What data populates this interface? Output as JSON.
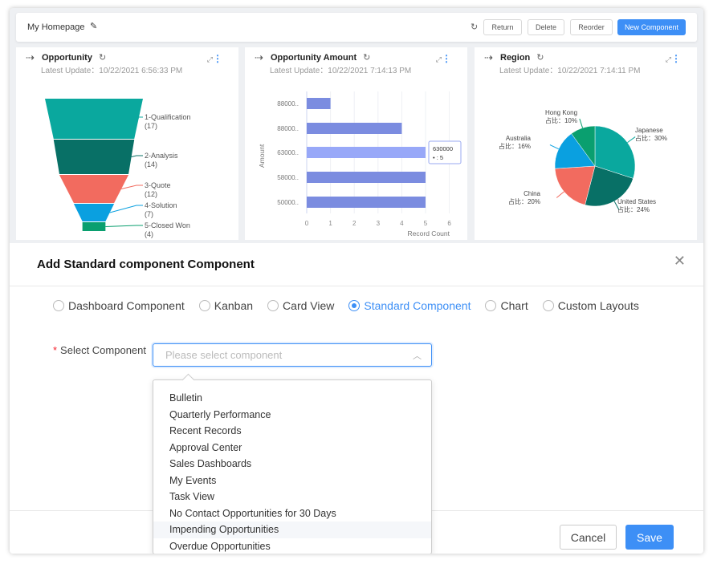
{
  "header": {
    "title": "My Homepage",
    "buttons": {
      "return": "Return",
      "delete": "Delete",
      "reorder": "Reorder",
      "new_component": "New Component"
    }
  },
  "cards": [
    {
      "title": "Opportunity",
      "update": "Latest Update：10/22/2021 6:56:33 PM"
    },
    {
      "title": "Opportunity Amount",
      "update": "Latest Update：10/22/2021 7:14:13 PM"
    },
    {
      "title": "Region",
      "update": "Latest Update：10/22/2021 7:14:11 PM"
    }
  ],
  "chart_data": [
    {
      "type": "funnel",
      "stages": [
        {
          "name": "1-Qualification",
          "value": 17,
          "color": "#0aa89e"
        },
        {
          "name": "2-Analysis",
          "value": 14,
          "color": "#087066"
        },
        {
          "name": "3-Quote",
          "value": 12,
          "color": "#f26b5f"
        },
        {
          "name": "4-Solution",
          "value": 7,
          "color": "#0aa0e0"
        },
        {
          "name": "5-Closed Won",
          "value": 4,
          "color": "#0a9f6f"
        }
      ]
    },
    {
      "type": "bar",
      "orientation": "horizontal",
      "categories": [
        "88000..",
        "88000..",
        "63000..",
        "58000..",
        "50000.."
      ],
      "values": [
        1,
        4,
        5,
        5,
        5
      ],
      "xlabel": "Record Count",
      "ylabel": "Amount",
      "xlim": [
        0,
        6
      ],
      "xticks": [
        "0",
        "1",
        "2",
        "3",
        "4",
        "5",
        "6"
      ],
      "color": "#7b8ce0",
      "highlight_color": "#98a8f8",
      "tooltip": {
        "title": "630000",
        "value": "• : 5"
      }
    },
    {
      "type": "pie",
      "slices": [
        {
          "name": "Japanese",
          "value": 30,
          "label": "占比：30%",
          "color": "#0aa89e"
        },
        {
          "name": "United States",
          "value": 24,
          "label": "占比：24%",
          "color": "#087066"
        },
        {
          "name": "China",
          "value": 20,
          "label": "占比：20%",
          "color": "#f26b5f"
        },
        {
          "name": "Australia",
          "value": 16,
          "label": "占比：16%",
          "color": "#0aa0e0"
        },
        {
          "name": "Hong Kong",
          "value": 10,
          "label": "占比：10%",
          "color": "#0a9f6f"
        }
      ]
    }
  ],
  "modal": {
    "title": "Add Standard component Component",
    "types": [
      "Dashboard Component",
      "Kanban",
      "Card View",
      "Standard Component",
      "Chart",
      "Custom Layouts"
    ],
    "selected_type": "Standard Component",
    "field_label": "Select Component",
    "placeholder": "Please select component",
    "options": [
      "Bulletin",
      "Quarterly Performance",
      "Recent Records",
      "Approval Center",
      "Sales Dashboards",
      "My Events",
      "Task View",
      "No Contact Opportunities for 30 Days",
      "Impending Opportunities",
      "Overdue Opportunities"
    ],
    "hovered_option": "Impending Opportunities",
    "cancel": "Cancel",
    "save": "Save"
  }
}
